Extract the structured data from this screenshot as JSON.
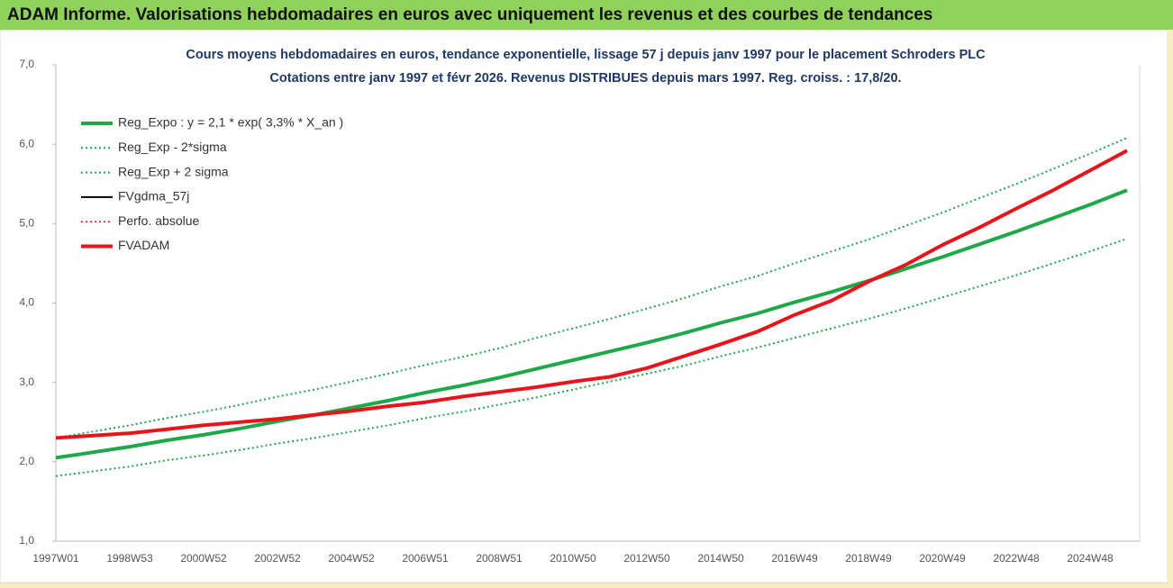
{
  "header": {
    "title": "ADAM Informe. Valorisations hebdomadaires en euros avec uniquement les revenus et des courbes de tendances"
  },
  "chart_data": {
    "type": "line",
    "title": "Cours moyens hebdomadaires en euros, tendance exponentielle, lissage 57 j depuis janv 1997 pour le placement Schroders PLC",
    "subtitle": "Cotations entre janv 1997 et févr 2026. Revenus DISTRIBUES depuis mars 1997. Reg. croiss. : 17,8/20.",
    "categories": [
      "1997W01",
      null,
      "1998W53",
      null,
      "2000W52",
      null,
      "2002W52",
      null,
      "2004W52",
      null,
      "2006W51",
      null,
      "2008W51",
      null,
      "2010W50",
      null,
      "2012W50",
      null,
      "2014W50",
      null,
      "2016W49",
      null,
      "2018W49",
      null,
      "2020W49",
      null,
      "2022W48",
      null,
      "2024W48",
      null
    ],
    "ylim": [
      1,
      7
    ],
    "yticks": [
      {
        "value": 1,
        "label": "1,0"
      },
      {
        "value": 2,
        "label": "2,0"
      },
      {
        "value": 3,
        "label": "3,0"
      },
      {
        "value": 4,
        "label": "4,0"
      },
      {
        "value": 5,
        "label": "5,0"
      },
      {
        "value": 6,
        "label": "6,0"
      },
      {
        "value": 7,
        "label": "7,0"
      }
    ],
    "legend": "top-left",
    "series": [
      {
        "name": "Reg_Expo : y = 2,1 * exp( 3,3% *  X_an )",
        "color": "#1fa84a",
        "line_style": "solid",
        "values": [
          2.05,
          2.12,
          2.19,
          2.27,
          2.34,
          2.42,
          2.51,
          2.59,
          2.68,
          2.77,
          2.87,
          2.96,
          3.06,
          3.17,
          3.28,
          3.39,
          3.5,
          3.62,
          3.75,
          3.87,
          4.01,
          4.14,
          4.28,
          4.43,
          4.58,
          4.74,
          4.9,
          5.07,
          5.24,
          5.42
        ]
      },
      {
        "name": "Reg_Exp - 2*sigma",
        "color": "#1fa84a",
        "line_style": "dotted",
        "values": [
          1.82,
          1.88,
          1.94,
          2.02,
          2.08,
          2.15,
          2.23,
          2.3,
          2.38,
          2.46,
          2.55,
          2.63,
          2.72,
          2.81,
          2.91,
          3.01,
          3.11,
          3.21,
          3.33,
          3.44,
          3.56,
          3.68,
          3.8,
          3.93,
          4.07,
          4.21,
          4.35,
          4.5,
          4.65,
          4.81
        ]
      },
      {
        "name": "Reg_Exp + 2 sigma",
        "color": "#1fa84a",
        "line_style": "dotted",
        "values": [
          2.3,
          2.38,
          2.46,
          2.55,
          2.63,
          2.72,
          2.82,
          2.91,
          3.01,
          3.11,
          3.22,
          3.32,
          3.43,
          3.56,
          3.68,
          3.8,
          3.93,
          4.06,
          4.21,
          4.34,
          4.5,
          4.65,
          4.8,
          4.97,
          5.14,
          5.32,
          5.5,
          5.69,
          5.88,
          6.08
        ]
      },
      {
        "name": "FVgdma_57j",
        "color": "#000000",
        "line_style": "solid",
        "values": [
          2.3,
          2.33,
          2.36,
          2.41,
          2.46,
          2.5,
          2.54,
          2.59,
          2.64,
          2.7,
          2.75,
          2.82,
          2.88,
          2.94,
          3.01,
          3.07,
          3.18,
          3.33,
          3.48,
          3.64,
          3.85,
          4.03,
          4.27,
          4.48,
          4.73,
          4.95,
          5.19,
          5.42,
          5.67,
          5.92
        ]
      },
      {
        "name": "Perfo. absolue",
        "color": "#e8141b",
        "line_style": "dotted",
        "values": [
          2.3,
          2.33,
          2.36,
          2.41,
          2.46,
          2.5,
          2.54,
          2.59,
          2.64,
          2.7,
          2.75,
          2.82,
          2.88,
          2.94,
          3.01,
          3.07,
          3.18,
          3.33,
          3.48,
          3.64,
          3.85,
          4.03,
          4.27,
          4.48,
          4.73,
          4.95,
          5.19,
          5.42,
          5.67,
          5.92
        ]
      },
      {
        "name": "FVADAM",
        "color": "#e8141b",
        "line_style": "solid",
        "values": [
          2.3,
          2.33,
          2.36,
          2.41,
          2.46,
          2.5,
          2.54,
          2.59,
          2.64,
          2.7,
          2.75,
          2.82,
          2.88,
          2.94,
          3.01,
          3.07,
          3.18,
          3.33,
          3.48,
          3.64,
          3.85,
          4.03,
          4.27,
          4.48,
          4.73,
          4.95,
          5.19,
          5.42,
          5.67,
          5.92
        ]
      }
    ]
  }
}
